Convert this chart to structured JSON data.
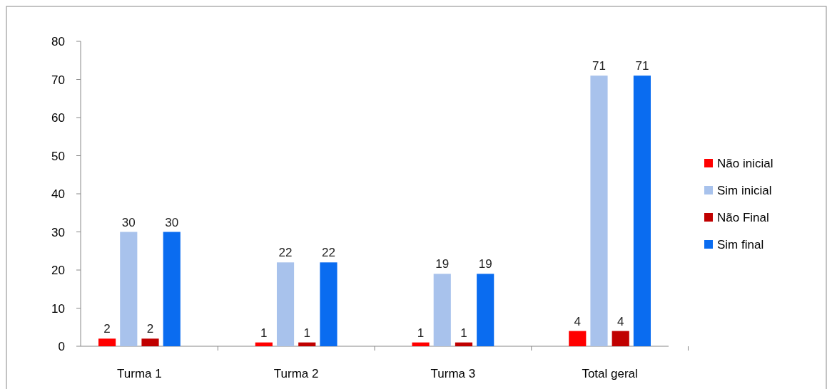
{
  "chart_data": {
    "type": "bar",
    "categories": [
      "Turma 1",
      "Turma 2",
      "Turma 3",
      "Total geral"
    ],
    "series": [
      {
        "name": "Não inicial",
        "color": "#ff0000",
        "values": [
          2,
          1,
          1,
          4
        ]
      },
      {
        "name": "Sim inicial",
        "color": "#a8c2ec",
        "values": [
          30,
          22,
          19,
          71
        ]
      },
      {
        "name": "Não Final",
        "color": "#c00000",
        "values": [
          2,
          1,
          1,
          4
        ]
      },
      {
        "name": "Sim final",
        "color": "#0a6cf0",
        "values": [
          30,
          22,
          19,
          71
        ]
      }
    ],
    "ylim": [
      0,
      80
    ],
    "yticks": [
      0,
      10,
      20,
      30,
      40,
      50,
      60,
      70,
      80
    ],
    "data_labels": true,
    "legend": "right",
    "grid": false
  }
}
